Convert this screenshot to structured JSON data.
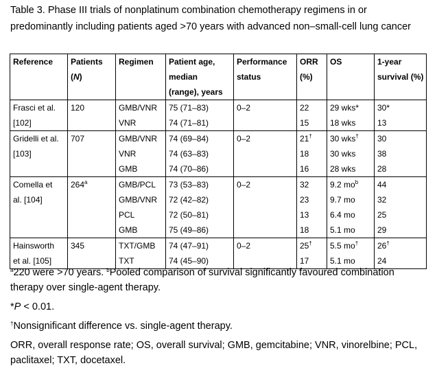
{
  "caption": "Table 3. Phase III trials of nonplatinum combination chemotherapy regimens in or predominantly including patients aged >70 years with advanced non–small-cell lung cancer",
  "headers": {
    "reference": "Reference",
    "patients": "Patients",
    "patients_n": "N",
    "regimen": "Regimen",
    "age_l1": "Patient age,",
    "age_l2": "median",
    "age_l3": "(range), years",
    "ps_l1": "Performance",
    "ps_l2": "status",
    "orr_l1": "ORR",
    "orr_l2": "(%)",
    "os": "OS",
    "surv_l1": "1-year",
    "surv_l2": "survival (%)"
  },
  "trials": [
    {
      "ref_l1": "Frasci et al.",
      "ref_l2": "[102]",
      "patients": "120",
      "patients_sup": "",
      "ps": "0–2",
      "arms": [
        {
          "regimen": "GMB/VNR",
          "age": "75 (71–83)",
          "orr": "22",
          "orr_sup": "",
          "os": "29 wks*",
          "os_sup": "",
          "surv": "30*",
          "surv_sup": ""
        },
        {
          "regimen": "VNR",
          "age": "74 (71–81)",
          "orr": "15",
          "orr_sup": "",
          "os": "18 wks",
          "os_sup": "",
          "surv": "13",
          "surv_sup": ""
        }
      ]
    },
    {
      "ref_l1": "Gridelli et al.",
      "ref_l2": "[103]",
      "patients": "707",
      "patients_sup": "",
      "ps": "0–2",
      "arms": [
        {
          "regimen": "GMB/VNR",
          "age": "74 (69–84)",
          "orr": "21",
          "orr_sup": "†",
          "os": "30 wks",
          "os_sup": "†",
          "surv": "30",
          "surv_sup": ""
        },
        {
          "regimen": "VNR",
          "age": "74 (63–83)",
          "orr": "18",
          "orr_sup": "",
          "os": "30 wks",
          "os_sup": "",
          "surv": "38",
          "surv_sup": ""
        },
        {
          "regimen": "GMB",
          "age": "74 (70–86)",
          "orr": "16",
          "orr_sup": "",
          "os": "28 wks",
          "os_sup": "",
          "surv": "28",
          "surv_sup": ""
        }
      ]
    },
    {
      "ref_l1": "Comella et",
      "ref_l2": "al. [104]",
      "patients": "264",
      "patients_sup": "a",
      "ps": "0–2",
      "arms": [
        {
          "regimen": "GMB/PCL",
          "age": "73 (53–83)",
          "orr": "32",
          "orr_sup": "",
          "os": "9.2 mo",
          "os_sup": "b",
          "surv": "44",
          "surv_sup": ""
        },
        {
          "regimen": "GMB/VNR",
          "age": "72 (42–82)",
          "orr": "23",
          "orr_sup": "",
          "os": "9.7 mo",
          "os_sup": "",
          "surv": "32",
          "surv_sup": ""
        },
        {
          "regimen": "PCL",
          "age": "72 (50–81)",
          "orr": "13",
          "orr_sup": "",
          "os": "6.4 mo",
          "os_sup": "",
          "surv": "25",
          "surv_sup": ""
        },
        {
          "regimen": "GMB",
          "age": "75 (49–86)",
          "orr": "18",
          "orr_sup": "",
          "os": "5.1 mo",
          "os_sup": "",
          "surv": "29",
          "surv_sup": ""
        }
      ]
    },
    {
      "ref_l1": "Hainsworth",
      "ref_l2": "et al. [105]",
      "patients": "345",
      "patients_sup": "",
      "ps": "0–2",
      "arms": [
        {
          "regimen": "TXT/GMB",
          "age": "74 (47–91)",
          "orr": "25",
          "orr_sup": "†",
          "os": "5.5 mo",
          "os_sup": "†",
          "surv": "26",
          "surv_sup": "†"
        },
        {
          "regimen": "TXT",
          "age": "74 (45–90)",
          "orr": "17",
          "orr_sup": "",
          "os": "5.1 mo",
          "os_sup": "",
          "surv": "24",
          "surv_sup": ""
        }
      ]
    }
  ],
  "notes": {
    "a_mark": "a",
    "a_text": "220 were >70 years. ",
    "b_mark": "b",
    "b_text": "Pooled comparison of survival significantly favoured combination therapy over single-agent therapy.",
    "p_prefix": "*",
    "p_italic": "P",
    "p_rest": " < 0.01.",
    "dagger_mark": "†",
    "dagger_text": "Nonsignificant difference vs. single-agent therapy.",
    "abbrev": "ORR, overall response rate; OS, overall survival; GMB, gemcitabine; VNR, vinorelbine; PCL, paclitaxel; TXT, docetaxel."
  }
}
